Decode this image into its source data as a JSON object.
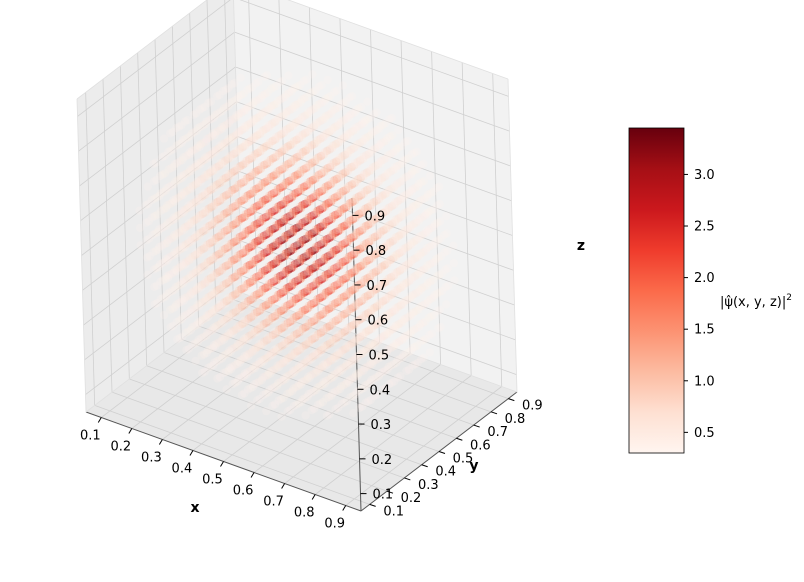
{
  "chart_data": {
    "type": "scatter",
    "projection": "3d",
    "title": "",
    "xlabel": "x",
    "ylabel": "y",
    "zlabel": "z",
    "x_ticks": [
      "0.1",
      "0.2",
      "0.3",
      "0.4",
      "0.5",
      "0.6",
      "0.7",
      "0.8",
      "0.9"
    ],
    "y_ticks": [
      "0.1",
      "0.2",
      "0.3",
      "0.4",
      "0.5",
      "0.6",
      "0.7",
      "0.8",
      "0.9"
    ],
    "z_ticks": [
      "0.1",
      "0.2",
      "0.3",
      "0.4",
      "0.5",
      "0.6",
      "0.7",
      "0.8",
      "0.9"
    ],
    "xlim": [
      0.05,
      0.95
    ],
    "ylim": [
      0.05,
      0.95
    ],
    "zlim": [
      0.05,
      0.95
    ],
    "grid": true,
    "points": {
      "layout": "regular grid filling a sphere",
      "grid_start": 0.05,
      "grid_end": 0.95,
      "grid_count": 19,
      "sphere_center": [
        0.5,
        0.5,
        0.5
      ],
      "sphere_radius": 0.45,
      "value_peak": 3.45,
      "value_min": 0.3
    },
    "colorbar": {
      "label_main": "|ψ̂(x, y, z)|",
      "label_sup": "2",
      "colormap": "Reds",
      "range": [
        0.3,
        3.45
      ],
      "ticks": [
        "0.5",
        "1.0",
        "1.5",
        "2.0",
        "2.5",
        "3.0"
      ]
    }
  },
  "colors": {
    "pane": "#f2f2f2",
    "grid": "#d0d0d0",
    "axis_line": "#000000",
    "colormap_low": "#fff5f0",
    "colormap_high": "#67000d"
  }
}
